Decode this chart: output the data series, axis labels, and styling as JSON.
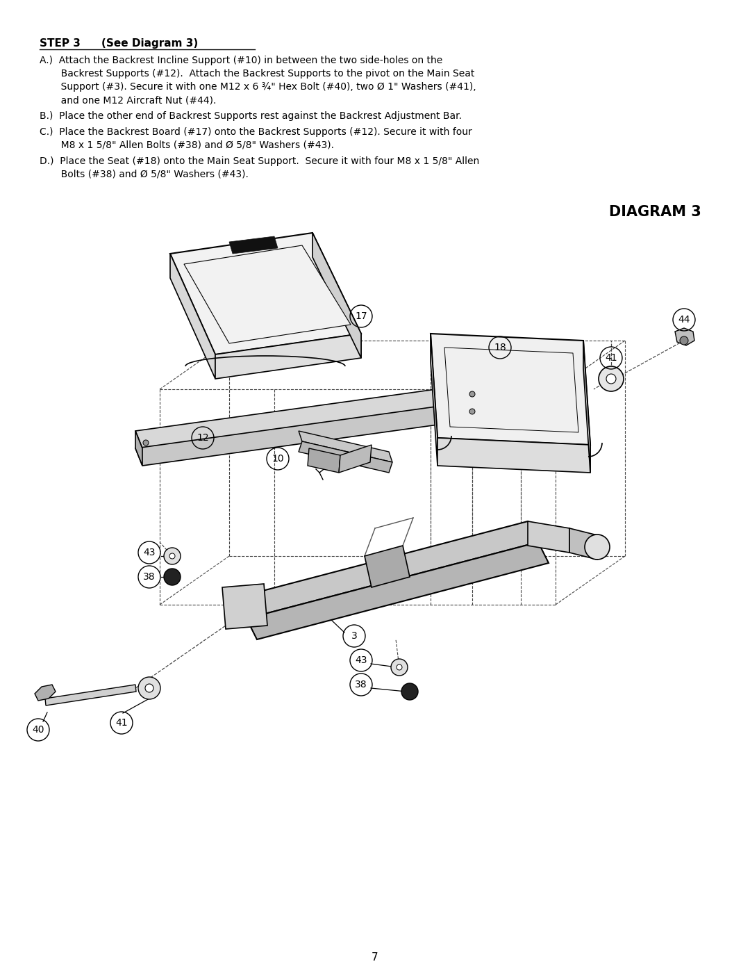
{
  "title": "DIAGRAM 3",
  "step_header_bold": "STEP 3",
  "step_header_normal": "    (See Diagram 3)",
  "instr_A1": "A.)  Attach the Backrest Incline Support (#10) in between the two side-holes on the",
  "instr_A2": "       Backrest Supports (#12).  Attach the Backrest Supports to the pivot on the Main Seat",
  "instr_A3": "       Support (#3). Secure it with one M12 x 6 ¾\" Hex Bolt (#40), two Ø 1\" Washers (#41),",
  "instr_A4": "       and one M12 Aircraft Nut (#44).",
  "instr_B": "B.)  Place the other end of Backrest Supports rest against the Backrest Adjustment Bar.",
  "instr_C1": "C.)  Place the Backrest Board (#17) onto the Backrest Supports (#12). Secure it with four",
  "instr_C2": "       M8 x 1 5/8\" Allen Bolts (#38) and Ø 5/8\" Washers (#43).",
  "instr_D1": "D.)  Place the Seat (#18) onto the Main Seat Support.  Secure it with four M8 x 1 5/8\" Allen",
  "instr_D2": "       Bolts (#38) and Ø 5/8\" Washers (#43).",
  "page_number": "7",
  "bg_color": "#ffffff",
  "text_color": "#000000"
}
